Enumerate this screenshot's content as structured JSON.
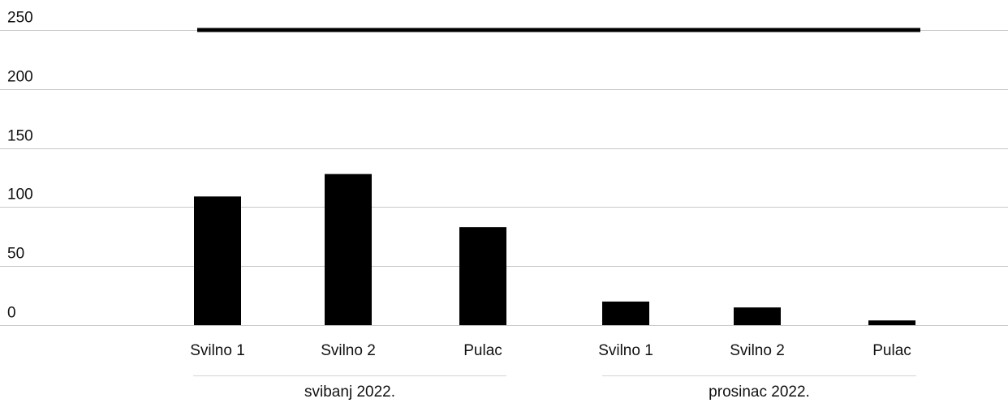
{
  "chart_data": {
    "type": "bar",
    "title": "",
    "xlabel": "",
    "ylabel": "",
    "ylim": [
      0,
      250
    ],
    "yticks": [
      "0",
      "50",
      "100",
      "150",
      "200",
      "250"
    ],
    "grid": true,
    "groups": [
      {
        "label": "svibanj 2022.",
        "categories": [
          "Svilno 1",
          "Svilno 2",
          "Pulac"
        ],
        "values": [
          109,
          128,
          83
        ]
      },
      {
        "label": "prosinac 2022.",
        "categories": [
          "Svilno 1",
          "Svilno 2",
          "Pulac"
        ],
        "values": [
          20,
          15,
          4
        ]
      }
    ],
    "reference_line": {
      "value": 250,
      "color": "#000000"
    },
    "bar_color": "#000000"
  }
}
